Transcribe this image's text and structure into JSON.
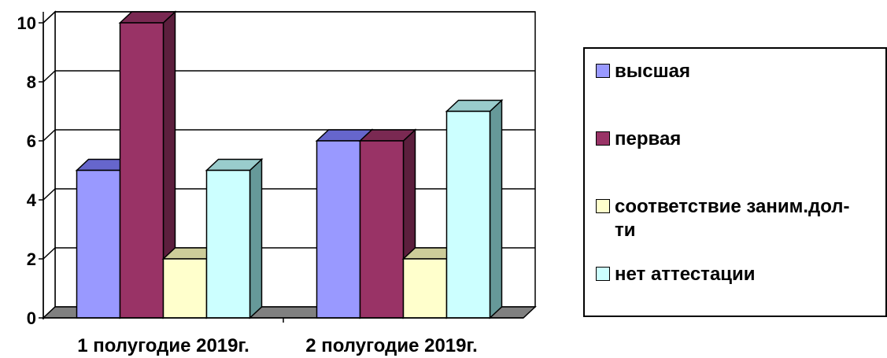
{
  "chart_data": {
    "type": "bar",
    "categories": [
      "1 полугодие 2019г.",
      "2 полугодие 2019г."
    ],
    "series": [
      {
        "name": "высшая",
        "values": [
          5,
          6
        ],
        "color": "#9999ff",
        "top_color": "#6666cc",
        "side_color": "#4d4d99"
      },
      {
        "name": "первая",
        "values": [
          10,
          6
        ],
        "color": "#993366",
        "top_color": "#7a2952",
        "side_color": "#5c1f3d"
      },
      {
        "name": "соответствие заним.дол-ти",
        "values": [
          2,
          2
        ],
        "color": "#ffffcc",
        "top_color": "#cccc99",
        "side_color": "#999973"
      },
      {
        "name": "нет аттестации",
        "values": [
          5,
          7
        ],
        "color": "#ccffff",
        "top_color": "#99cccc",
        "side_color": "#669999"
      }
    ],
    "yticks": [
      "0",
      "2",
      "4",
      "6",
      "8",
      "10"
    ],
    "ylim": [
      0,
      10
    ],
    "grid": true,
    "legend_position": "right",
    "three_d": true
  }
}
